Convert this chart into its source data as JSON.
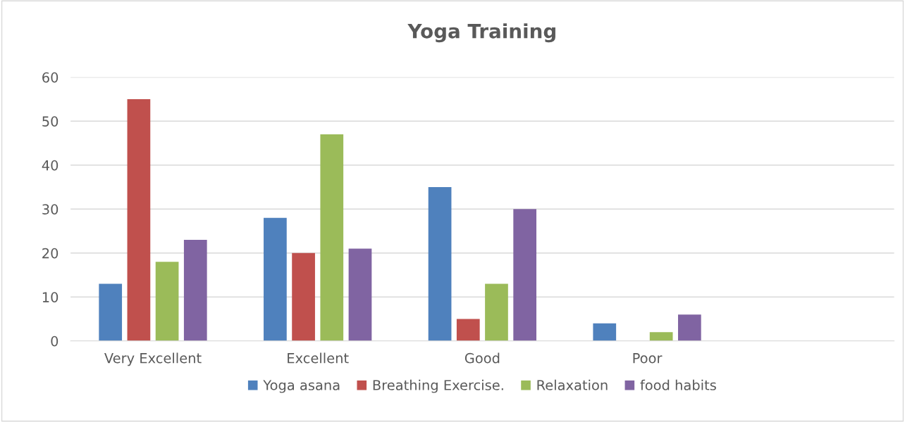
{
  "chart_data": {
    "type": "bar",
    "title": "Yoga Training",
    "categories": [
      "Very Excellent",
      "Excellent",
      "Good",
      "Poor",
      null
    ],
    "series": [
      {
        "name": "Yoga asana",
        "color": "#4f81bd",
        "values": [
          13,
          28,
          35,
          4,
          null
        ]
      },
      {
        "name": "Breathing Exercise.",
        "color": "#c0504d",
        "values": [
          55,
          20,
          5,
          0,
          null
        ]
      },
      {
        "name": "Relaxation",
        "color": "#9bbb59",
        "values": [
          18,
          47,
          13,
          2,
          null
        ]
      },
      {
        "name": "food habits",
        "color": "#8064a2",
        "values": [
          23,
          21,
          30,
          6,
          null
        ]
      }
    ],
    "ylim": [
      0,
      60
    ],
    "yticks": [
      0,
      10,
      20,
      30,
      40,
      50,
      60
    ],
    "grid": "y",
    "legend": "bottom"
  }
}
